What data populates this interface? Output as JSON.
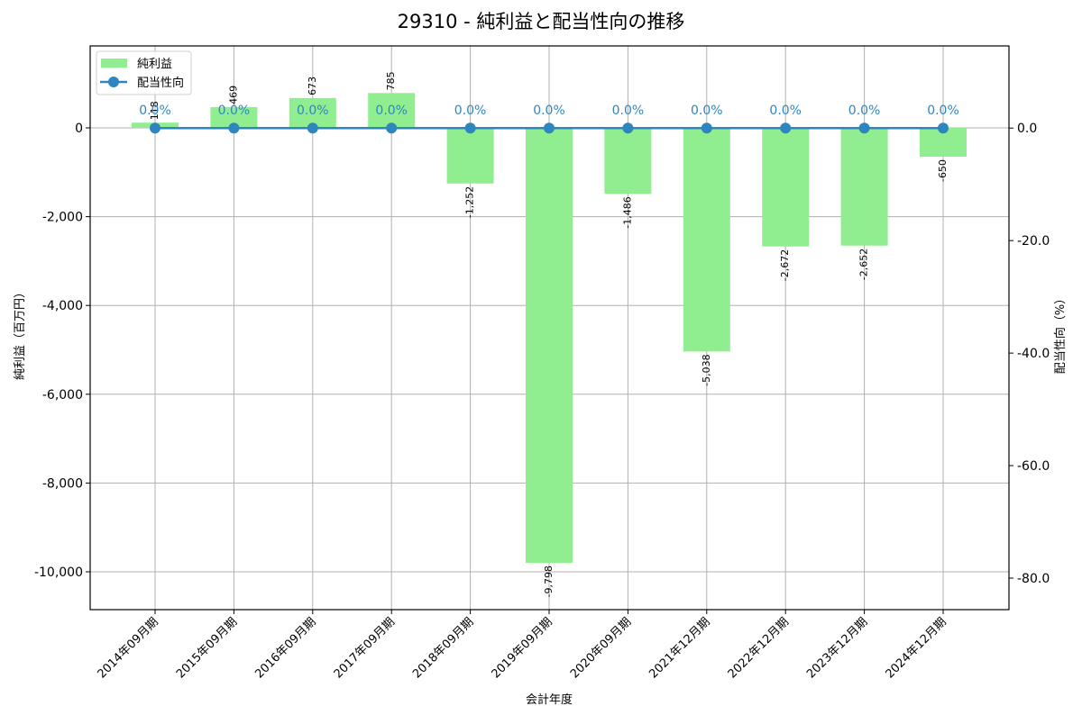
{
  "title": "29310 - 純利益と配当性向の推移",
  "colors": {
    "bar": "#90ee90",
    "line": "#2e86c1",
    "grid": "#b0b0b0",
    "axis": "#000000",
    "text": "#000000"
  },
  "legend": {
    "items": [
      {
        "label": "純利益",
        "type": "bar"
      },
      {
        "label": "配当性向",
        "type": "line"
      }
    ]
  },
  "chart_data": {
    "type": "bar+line",
    "title": "29310 - 純利益と配当性向の推移",
    "xlabel": "会計年度",
    "ylabel": "純利益（百万円）",
    "ylabel_right": "配当性向（%）",
    "categories": [
      "2014年09月期",
      "2015年09月期",
      "2016年09月期",
      "2017年09月期",
      "2018年09月期",
      "2019年09月期",
      "2020年09月期",
      "2021年12月期",
      "2022年12月期",
      "2023年12月期",
      "2024年12月期"
    ],
    "series": [
      {
        "name": "純利益",
        "type": "bar",
        "axis": "left",
        "values": [
          118,
          469,
          673,
          785,
          -1252,
          -9798,
          -1486,
          -5038,
          -2672,
          -2652,
          -650
        ],
        "labels": [
          "118",
          "469",
          "673",
          "785",
          "-1,252",
          "-9,798",
          "-1,486",
          "-5,038",
          "-2,672",
          "-2,652",
          "-650"
        ]
      },
      {
        "name": "配当性向",
        "type": "line",
        "axis": "right",
        "values": [
          0.0,
          0.0,
          0.0,
          0.0,
          0.0,
          0.0,
          0.0,
          0.0,
          0.0,
          0.0,
          0.0
        ],
        "labels": [
          "0.0%",
          "0.0%",
          "0.0%",
          "0.0%",
          "0.0%",
          "0.0%",
          "0.0%",
          "0.0%",
          "0.0%",
          "0.0%",
          "0.0%"
        ]
      }
    ],
    "ylim": [
      -10852,
      1846
    ],
    "ylim_right": [
      -85.6,
      14.6
    ],
    "yticks": [
      0,
      -2000,
      -4000,
      -6000,
      -8000,
      -10000
    ],
    "ytick_labels": [
      "0",
      "-2,000",
      "-4,000",
      "-6,000",
      "-8,000",
      "-10,000"
    ],
    "yticks_right": [
      0,
      -20,
      -40,
      -60,
      -80
    ],
    "ytick_labels_right": [
      "0.0",
      "-20.0",
      "-40.0",
      "-60.0",
      "-80.0"
    ],
    "grid": true,
    "legend_position": "upper left"
  }
}
